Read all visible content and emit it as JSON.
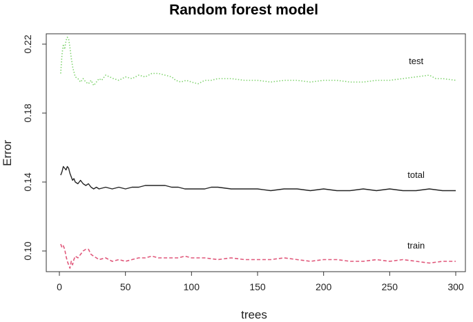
{
  "chart_data": {
    "type": "line",
    "title": "Random forest model",
    "xlabel": "trees",
    "ylabel": "Error",
    "xlim": [
      0,
      300
    ],
    "ylim": [
      0.088,
      0.226
    ],
    "x_ticks": [
      0,
      50,
      100,
      150,
      200,
      250,
      300
    ],
    "y_ticks": [
      0.1,
      0.14,
      0.18,
      0.22
    ],
    "y_tick_labels": [
      "0.10",
      "0.14",
      "0.18",
      "0.22"
    ],
    "grid": false,
    "legend": "none",
    "series": [
      {
        "name": "test",
        "color": "#7fd36e",
        "style": "dotted",
        "label_at": [
          270,
          0.2085
        ],
        "points": [
          [
            1,
            0.203
          ],
          [
            2,
            0.214
          ],
          [
            3,
            0.22
          ],
          [
            4,
            0.217
          ],
          [
            5,
            0.222
          ],
          [
            6,
            0.224
          ],
          [
            7,
            0.223
          ],
          [
            8,
            0.218
          ],
          [
            9,
            0.212
          ],
          [
            10,
            0.207
          ],
          [
            11,
            0.204
          ],
          [
            12,
            0.201
          ],
          [
            14,
            0.2
          ],
          [
            16,
            0.198
          ],
          [
            18,
            0.2
          ],
          [
            20,
            0.198
          ],
          [
            22,
            0.197
          ],
          [
            24,
            0.199
          ],
          [
            26,
            0.196
          ],
          [
            28,
            0.198
          ],
          [
            30,
            0.2
          ],
          [
            32,
            0.199
          ],
          [
            35,
            0.202
          ],
          [
            38,
            0.201
          ],
          [
            41,
            0.2
          ],
          [
            45,
            0.199
          ],
          [
            50,
            0.201
          ],
          [
            55,
            0.2
          ],
          [
            60,
            0.202
          ],
          [
            65,
            0.201
          ],
          [
            70,
            0.203
          ],
          [
            75,
            0.203
          ],
          [
            80,
            0.202
          ],
          [
            85,
            0.201
          ],
          [
            88,
            0.199
          ],
          [
            92,
            0.198
          ],
          [
            96,
            0.199
          ],
          [
            100,
            0.198
          ],
          [
            105,
            0.197
          ],
          [
            110,
            0.199
          ],
          [
            115,
            0.199
          ],
          [
            120,
            0.2
          ],
          [
            130,
            0.2
          ],
          [
            140,
            0.199
          ],
          [
            150,
            0.199
          ],
          [
            160,
            0.198
          ],
          [
            170,
            0.199
          ],
          [
            180,
            0.199
          ],
          [
            190,
            0.198
          ],
          [
            200,
            0.199
          ],
          [
            210,
            0.199
          ],
          [
            220,
            0.198
          ],
          [
            230,
            0.198
          ],
          [
            240,
            0.199
          ],
          [
            250,
            0.199
          ],
          [
            260,
            0.2
          ],
          [
            270,
            0.201
          ],
          [
            280,
            0.202
          ],
          [
            285,
            0.2
          ],
          [
            290,
            0.2
          ],
          [
            300,
            0.199
          ]
        ]
      },
      {
        "name": "total",
        "color": "#222222",
        "style": "solid",
        "label_at": [
          270,
          0.1425
        ],
        "points": [
          [
            1,
            0.144
          ],
          [
            2,
            0.146
          ],
          [
            3,
            0.149
          ],
          [
            4,
            0.148
          ],
          [
            5,
            0.147
          ],
          [
            6,
            0.149
          ],
          [
            7,
            0.148
          ],
          [
            8,
            0.145
          ],
          [
            9,
            0.143
          ],
          [
            10,
            0.141
          ],
          [
            11,
            0.142
          ],
          [
            12,
            0.14
          ],
          [
            14,
            0.139
          ],
          [
            16,
            0.141
          ],
          [
            18,
            0.139
          ],
          [
            20,
            0.138
          ],
          [
            22,
            0.139
          ],
          [
            24,
            0.137
          ],
          [
            26,
            0.136
          ],
          [
            28,
            0.137
          ],
          [
            30,
            0.136
          ],
          [
            35,
            0.137
          ],
          [
            40,
            0.136
          ],
          [
            45,
            0.137
          ],
          [
            50,
            0.136
          ],
          [
            55,
            0.137
          ],
          [
            60,
            0.137
          ],
          [
            65,
            0.138
          ],
          [
            70,
            0.138
          ],
          [
            75,
            0.138
          ],
          [
            80,
            0.138
          ],
          [
            85,
            0.137
          ],
          [
            90,
            0.137
          ],
          [
            95,
            0.136
          ],
          [
            100,
            0.136
          ],
          [
            110,
            0.136
          ],
          [
            115,
            0.137
          ],
          [
            120,
            0.137
          ],
          [
            130,
            0.136
          ],
          [
            140,
            0.136
          ],
          [
            150,
            0.136
          ],
          [
            160,
            0.135
          ],
          [
            170,
            0.136
          ],
          [
            180,
            0.136
          ],
          [
            190,
            0.135
          ],
          [
            200,
            0.136
          ],
          [
            210,
            0.135
          ],
          [
            220,
            0.135
          ],
          [
            230,
            0.136
          ],
          [
            240,
            0.135
          ],
          [
            250,
            0.136
          ],
          [
            260,
            0.135
          ],
          [
            270,
            0.135
          ],
          [
            280,
            0.136
          ],
          [
            290,
            0.135
          ],
          [
            300,
            0.135
          ]
        ]
      },
      {
        "name": "train",
        "color": "#e0577a",
        "style": "dashed",
        "label_at": [
          270,
          0.1015
        ],
        "points": [
          [
            1,
            0.104
          ],
          [
            2,
            0.102
          ],
          [
            3,
            0.103
          ],
          [
            4,
            0.101
          ],
          [
            5,
            0.097
          ],
          [
            6,
            0.094
          ],
          [
            7,
            0.092
          ],
          [
            8,
            0.09
          ],
          [
            9,
            0.094
          ],
          [
            10,
            0.092
          ],
          [
            11,
            0.095
          ],
          [
            12,
            0.097
          ],
          [
            14,
            0.096
          ],
          [
            16,
            0.098
          ],
          [
            18,
            0.1
          ],
          [
            20,
            0.101
          ],
          [
            22,
            0.101
          ],
          [
            24,
            0.098
          ],
          [
            26,
            0.097
          ],
          [
            28,
            0.096
          ],
          [
            30,
            0.095
          ],
          [
            35,
            0.096
          ],
          [
            40,
            0.094
          ],
          [
            45,
            0.095
          ],
          [
            50,
            0.094
          ],
          [
            55,
            0.095
          ],
          [
            60,
            0.096
          ],
          [
            65,
            0.096
          ],
          [
            70,
            0.097
          ],
          [
            75,
            0.096
          ],
          [
            80,
            0.096
          ],
          [
            85,
            0.096
          ],
          [
            90,
            0.096
          ],
          [
            95,
            0.097
          ],
          [
            100,
            0.096
          ],
          [
            110,
            0.096
          ],
          [
            120,
            0.095
          ],
          [
            130,
            0.096
          ],
          [
            140,
            0.095
          ],
          [
            150,
            0.095
          ],
          [
            160,
            0.095
          ],
          [
            170,
            0.096
          ],
          [
            180,
            0.095
          ],
          [
            190,
            0.094
          ],
          [
            200,
            0.095
          ],
          [
            210,
            0.095
          ],
          [
            220,
            0.094
          ],
          [
            230,
            0.094
          ],
          [
            240,
            0.095
          ],
          [
            250,
            0.094
          ],
          [
            260,
            0.095
          ],
          [
            270,
            0.094
          ],
          [
            280,
            0.093
          ],
          [
            290,
            0.094
          ],
          [
            300,
            0.094
          ]
        ]
      }
    ]
  }
}
